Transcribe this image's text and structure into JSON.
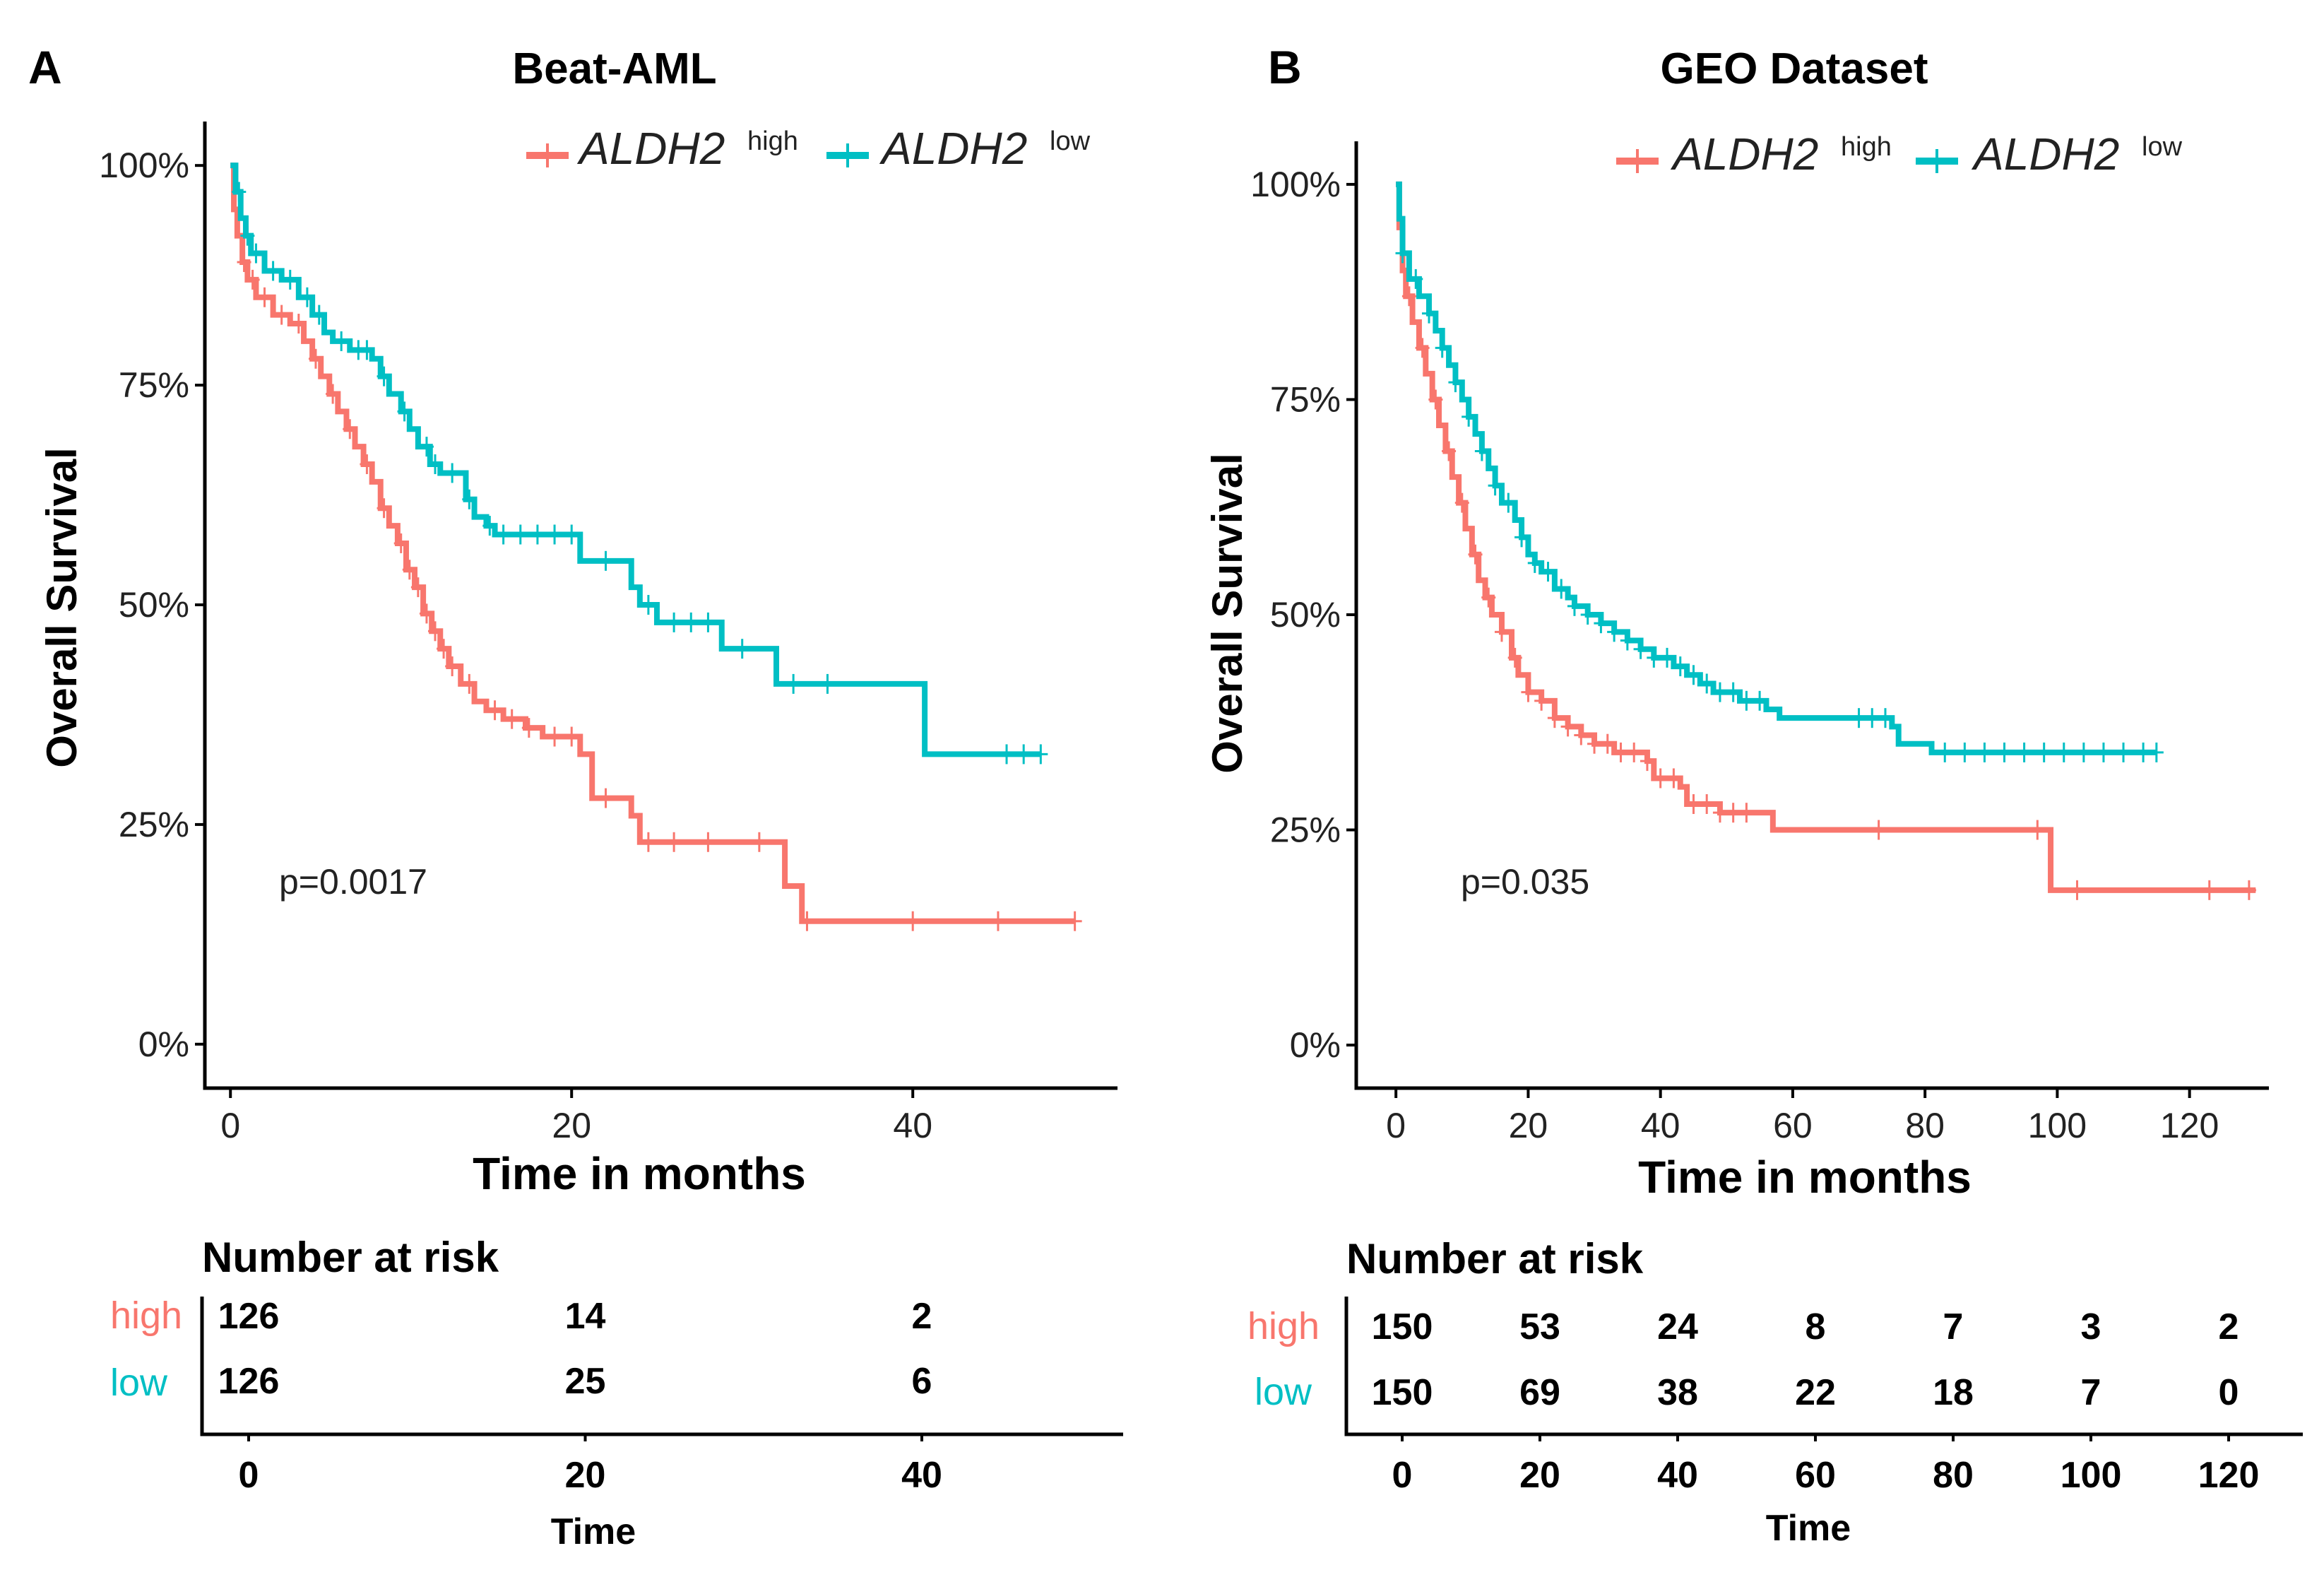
{
  "colors": {
    "high": "#F8766D",
    "low": "#00BFC4"
  },
  "chart_data": [
    {
      "type": "line",
      "panel": "A",
      "title": "Beat-AML",
      "xlabel": "Time in months",
      "ylabel": "Overall Survival",
      "xlim": [
        -1.5,
        52
      ],
      "ylim": [
        -0.05,
        1.05
      ],
      "x_ticks": [
        "0",
        "20",
        "40"
      ],
      "x_tick_values": [
        0,
        20,
        40
      ],
      "y_ticks": [
        "0%",
        "25%",
        "50%",
        "75%",
        "100%"
      ],
      "y_tick_values": [
        0,
        0.25,
        0.5,
        0.75,
        1.0
      ],
      "p_value": "p=0.0017",
      "legend": {
        "high": "ALDH2",
        "high_sup": "high",
        "low": "ALDH2",
        "low_sup": "low"
      },
      "series": [
        {
          "name": "high",
          "steps": [
            [
              0,
              1.0
            ],
            [
              0.2,
              0.95
            ],
            [
              0.4,
              0.92
            ],
            [
              0.7,
              0.89
            ],
            [
              1.0,
              0.87
            ],
            [
              1.5,
              0.85
            ],
            [
              2.5,
              0.83
            ],
            [
              3.5,
              0.82
            ],
            [
              4.3,
              0.8
            ],
            [
              4.8,
              0.78
            ],
            [
              5.3,
              0.76
            ],
            [
              5.8,
              0.74
            ],
            [
              6.3,
              0.72
            ],
            [
              6.8,
              0.7
            ],
            [
              7.3,
              0.68
            ],
            [
              7.8,
              0.66
            ],
            [
              8.3,
              0.64
            ],
            [
              8.8,
              0.61
            ],
            [
              9.3,
              0.59
            ],
            [
              9.8,
              0.57
            ],
            [
              10.3,
              0.54
            ],
            [
              10.8,
              0.52
            ],
            [
              11.3,
              0.49
            ],
            [
              11.8,
              0.47
            ],
            [
              12.3,
              0.45
            ],
            [
              12.8,
              0.43
            ],
            [
              13.5,
              0.41
            ],
            [
              14.3,
              0.39
            ],
            [
              15.0,
              0.38
            ],
            [
              16.0,
              0.37
            ],
            [
              17.3,
              0.36
            ],
            [
              18.3,
              0.35
            ],
            [
              20.5,
              0.33
            ],
            [
              21.2,
              0.28
            ],
            [
              23.5,
              0.26
            ],
            [
              24.0,
              0.23
            ],
            [
              32.5,
              0.18
            ],
            [
              33.5,
              0.14
            ],
            [
              49.5,
              0.14
            ]
          ],
          "censor_x": [
            0.8,
            1.3,
            2.0,
            3.0,
            4.0,
            5.0,
            6.0,
            7.0,
            8.0,
            9.0,
            10.0,
            10.5,
            11.0,
            11.5,
            12.0,
            12.5,
            13.0,
            14.0,
            15.5,
            16.5,
            17.5,
            19.0,
            20.0,
            22.0,
            24.5,
            26.0,
            28.0,
            31.0,
            33.8,
            40.0,
            45.0,
            49.5
          ],
          "risk_counts": [
            "126",
            "14",
            "2"
          ]
        },
        {
          "name": "low",
          "steps": [
            [
              0,
              1.0
            ],
            [
              0.3,
              0.97
            ],
            [
              0.6,
              0.94
            ],
            [
              0.9,
              0.92
            ],
            [
              1.2,
              0.9
            ],
            [
              2.0,
              0.88
            ],
            [
              3.0,
              0.87
            ],
            [
              4.0,
              0.85
            ],
            [
              4.8,
              0.83
            ],
            [
              5.5,
              0.81
            ],
            [
              6.0,
              0.8
            ],
            [
              7.0,
              0.79
            ],
            [
              8.3,
              0.78
            ],
            [
              8.8,
              0.76
            ],
            [
              9.3,
              0.74
            ],
            [
              10.0,
              0.72
            ],
            [
              10.5,
              0.7
            ],
            [
              11.0,
              0.68
            ],
            [
              11.7,
              0.66
            ],
            [
              12.3,
              0.65
            ],
            [
              13.8,
              0.62
            ],
            [
              14.3,
              0.6
            ],
            [
              15.0,
              0.59
            ],
            [
              15.5,
              0.58
            ],
            [
              20.5,
              0.55
            ],
            [
              23.5,
              0.52
            ],
            [
              24.0,
              0.5
            ],
            [
              25.0,
              0.48
            ],
            [
              28.8,
              0.45
            ],
            [
              32.0,
              0.41
            ],
            [
              40.7,
              0.33
            ],
            [
              47.5,
              0.33
            ]
          ],
          "censor_x": [
            0.5,
            1.0,
            1.5,
            2.5,
            3.5,
            4.5,
            5.2,
            6.5,
            7.5,
            8.0,
            9.0,
            10.2,
            11.5,
            12.0,
            13.0,
            14.0,
            15.2,
            16.0,
            17.0,
            18.0,
            19.0,
            20.0,
            22.0,
            24.5,
            26.0,
            27.0,
            28.0,
            30.0,
            33.0,
            35.0,
            45.5,
            46.5,
            47.5
          ],
          "risk_counts": [
            "126",
            "25",
            "6"
          ]
        }
      ],
      "risk_table": {
        "title": "Number at risk",
        "groups": [
          "high",
          "low"
        ],
        "ticks": [
          "0",
          "20",
          "40"
        ],
        "xlabel": "Time"
      }
    },
    {
      "type": "line",
      "panel": "B",
      "title": "GEO Dataset",
      "xlabel": "Time in months",
      "ylabel": "Overall Survival",
      "xlim": [
        -6,
        132
      ],
      "ylim": [
        -0.05,
        1.05
      ],
      "x_ticks": [
        "0",
        "20",
        "40",
        "60",
        "80",
        "100",
        "120"
      ],
      "x_tick_values": [
        0,
        20,
        40,
        60,
        80,
        100,
        120
      ],
      "y_ticks": [
        "0%",
        "25%",
        "50%",
        "75%",
        "100%"
      ],
      "y_tick_values": [
        0,
        0.25,
        0.5,
        0.75,
        1.0
      ],
      "p_value": "p=0.035",
      "legend": {
        "high": "ALDH2",
        "high_sup": "high",
        "low": "ALDH2",
        "low_sup": "low"
      },
      "series": [
        {
          "name": "high",
          "steps": [
            [
              0,
              1.0
            ],
            [
              0.5,
              0.95
            ],
            [
              1.0,
              0.9
            ],
            [
              1.5,
              0.87
            ],
            [
              2.5,
              0.84
            ],
            [
              3.5,
              0.81
            ],
            [
              4.5,
              0.78
            ],
            [
              5.5,
              0.75
            ],
            [
              6.5,
              0.72
            ],
            [
              7.5,
              0.69
            ],
            [
              8.5,
              0.66
            ],
            [
              9.5,
              0.63
            ],
            [
              10.5,
              0.6
            ],
            [
              11.5,
              0.57
            ],
            [
              12.5,
              0.54
            ],
            [
              13.5,
              0.52
            ],
            [
              14.5,
              0.5
            ],
            [
              16.0,
              0.48
            ],
            [
              17.5,
              0.45
            ],
            [
              18.5,
              0.43
            ],
            [
              20.0,
              0.41
            ],
            [
              22.0,
              0.4
            ],
            [
              24.0,
              0.38
            ],
            [
              26.0,
              0.37
            ],
            [
              28.0,
              0.36
            ],
            [
              30.0,
              0.35
            ],
            [
              33.0,
              0.34
            ],
            [
              38.0,
              0.33
            ],
            [
              39.0,
              0.31
            ],
            [
              43.0,
              0.3
            ],
            [
              44.0,
              0.28
            ],
            [
              49.0,
              0.27
            ],
            [
              57.0,
              0.25
            ],
            [
              98.0,
              0.25
            ],
            [
              99.0,
              0.18
            ],
            [
              130.0,
              0.18
            ]
          ],
          "censor_x": [
            2,
            4,
            6,
            8,
            10,
            12,
            14,
            16,
            18,
            20,
            22,
            24,
            26,
            28,
            30,
            32,
            34,
            36,
            38,
            40,
            42,
            45,
            47,
            49,
            51,
            53,
            73,
            97,
            103,
            123,
            129
          ],
          "risk_counts": [
            "150",
            "53",
            "24",
            "8",
            "7",
            "3",
            "2"
          ]
        },
        {
          "name": "low",
          "steps": [
            [
              0,
              1.0
            ],
            [
              0.5,
              0.96
            ],
            [
              1.0,
              0.92
            ],
            [
              2.0,
              0.89
            ],
            [
              3.5,
              0.87
            ],
            [
              5.0,
              0.85
            ],
            [
              6.0,
              0.83
            ],
            [
              7.0,
              0.81
            ],
            [
              8.0,
              0.79
            ],
            [
              9.0,
              0.77
            ],
            [
              10.0,
              0.75
            ],
            [
              11.0,
              0.73
            ],
            [
              12.0,
              0.71
            ],
            [
              13.0,
              0.69
            ],
            [
              14.0,
              0.67
            ],
            [
              15.0,
              0.65
            ],
            [
              16.0,
              0.63
            ],
            [
              18.0,
              0.61
            ],
            [
              19.0,
              0.59
            ],
            [
              20.0,
              0.57
            ],
            [
              21.0,
              0.56
            ],
            [
              22.0,
              0.55
            ],
            [
              24.0,
              0.53
            ],
            [
              26.0,
              0.52
            ],
            [
              27.0,
              0.51
            ],
            [
              29.0,
              0.5
            ],
            [
              31.0,
              0.49
            ],
            [
              33.0,
              0.48
            ],
            [
              35.0,
              0.47
            ],
            [
              37.0,
              0.46
            ],
            [
              39.0,
              0.45
            ],
            [
              42.0,
              0.44
            ],
            [
              44.0,
              0.43
            ],
            [
              46.0,
              0.42
            ],
            [
              48.0,
              0.41
            ],
            [
              52.0,
              0.4
            ],
            [
              56.0,
              0.39
            ],
            [
              58.0,
              0.38
            ],
            [
              75.0,
              0.37
            ],
            [
              76.0,
              0.35
            ],
            [
              81.0,
              0.34
            ],
            [
              115.0,
              0.34
            ]
          ],
          "censor_x": [
            1,
            3,
            5,
            7,
            9,
            11,
            13,
            15,
            17,
            19,
            21,
            23,
            25,
            27,
            29,
            31,
            33,
            35,
            37,
            39,
            41,
            43,
            45,
            47,
            49,
            51,
            53,
            55,
            70,
            72,
            74,
            83,
            86,
            89,
            92,
            95,
            98,
            101,
            104,
            107,
            110,
            113,
            115
          ],
          "risk_counts": [
            "150",
            "69",
            "38",
            "22",
            "18",
            "7",
            "0"
          ]
        }
      ],
      "risk_table": {
        "title": "Number at risk",
        "groups": [
          "high",
          "low"
        ],
        "ticks": [
          "0",
          "20",
          "40",
          "60",
          "80",
          "100",
          "120"
        ],
        "xlabel": "Time"
      }
    }
  ]
}
